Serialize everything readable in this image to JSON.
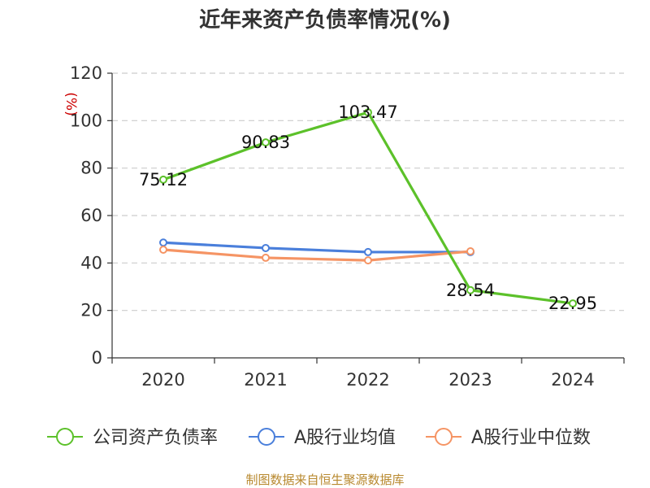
{
  "chart_data": {
    "type": "line",
    "title": "近年来资产负债率情况(%)",
    "ylabel": "(%)",
    "categories": [
      "2020",
      "2021",
      "2022",
      "2023",
      "2024"
    ],
    "ylim": [
      0,
      120
    ],
    "yticks": [
      0,
      20,
      40,
      60,
      80,
      100,
      120
    ],
    "grid": true,
    "legend_position": "bottom",
    "series": [
      {
        "name": "公司资产负债率",
        "color": "#5cc12a",
        "values": [
          75.12,
          90.83,
          103.47,
          28.54,
          22.95
        ],
        "labels": [
          "75.12",
          "90.83",
          "103.47",
          "28.54",
          "22.95"
        ]
      },
      {
        "name": "A股行业均值",
        "color": "#4a7fdb",
        "values": [
          48.6,
          46.3,
          44.6,
          44.6,
          null
        ]
      },
      {
        "name": "A股行业中位数",
        "color": "#f59464",
        "values": [
          45.6,
          42.2,
          41.1,
          44.9,
          null
        ]
      }
    ],
    "source": "制图数据来自恒生聚源数据库"
  }
}
